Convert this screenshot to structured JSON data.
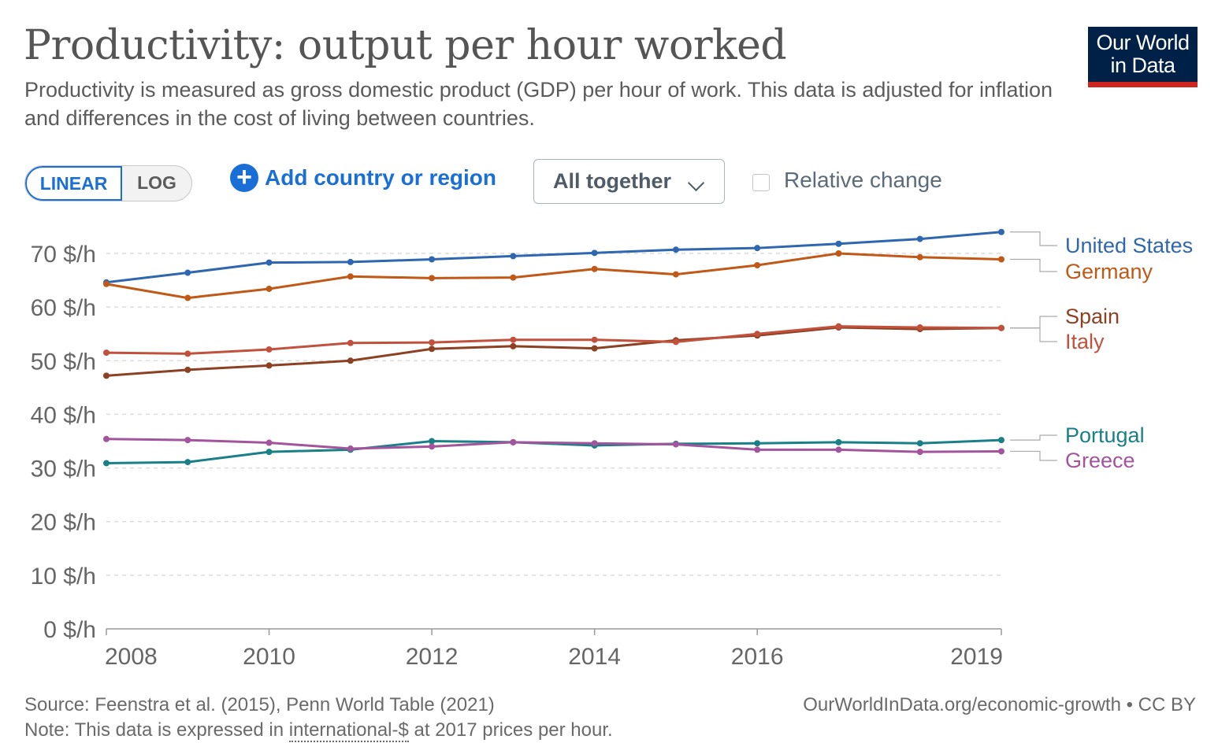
{
  "header": {
    "title": "Productivity: output per hour worked",
    "subtitle": "Productivity is measured as gross domestic product (GDP) per hour of work. This data is adjusted for inflation and differences in the cost of living between countries.",
    "logo_line1": "Our World",
    "logo_line2": "in Data"
  },
  "controls": {
    "linear_label": "LINEAR",
    "log_label": "LOG",
    "add_label": "Add country or region",
    "dropdown_value": "All together",
    "relative_label": "Relative change"
  },
  "footer": {
    "source": "Source: Feenstra et al. (2015), Penn World Table (2021)",
    "note_prefix": "Note: This data is expressed in ",
    "note_link": "international-$",
    "note_suffix": " at 2017 prices per hour.",
    "credit": "OurWorldInData.org/economic-growth • CC BY"
  },
  "colors": {
    "United States": "#2f66b0",
    "Germany": "#c05917",
    "Spain": "#8c4123",
    "Italy": "#c1513c",
    "Portugal": "#1a8087",
    "Greece": "#a2559c"
  },
  "chart_data": {
    "type": "line",
    "title": "Productivity: output per hour worked",
    "xlabel": "",
    "ylabel": "",
    "x": [
      2008,
      2009,
      2010,
      2011,
      2012,
      2013,
      2014,
      2015,
      2016,
      2017,
      2018,
      2019
    ],
    "xlim": [
      2008,
      2019
    ],
    "ylim": [
      0,
      70
    ],
    "x_ticks": [
      2008,
      2010,
      2012,
      2014,
      2016,
      2019
    ],
    "y_ticks": [
      0,
      10,
      20,
      30,
      40,
      50,
      60,
      70
    ],
    "y_tick_labels": [
      "0 $/h",
      "10 $/h",
      "20 $/h",
      "30 $/h",
      "40 $/h",
      "50 $/h",
      "60 $/h",
      "70 $/h"
    ],
    "grid": true,
    "legend": "right, labels at line ends",
    "series": [
      {
        "name": "United States",
        "values": [
          64.6,
          66.4,
          68.3,
          68.4,
          68.9,
          69.5,
          70.1,
          70.7,
          71.0,
          71.8,
          72.7,
          74.0
        ]
      },
      {
        "name": "Germany",
        "values": [
          64.3,
          61.7,
          63.4,
          65.7,
          65.4,
          65.5,
          67.1,
          66.1,
          67.8,
          70.0,
          69.3,
          68.9
        ]
      },
      {
        "name": "Spain",
        "values": [
          47.2,
          48.3,
          49.1,
          50.0,
          52.2,
          52.7,
          52.3,
          53.8,
          54.7,
          56.2,
          55.9,
          56.1
        ]
      },
      {
        "name": "Italy",
        "values": [
          51.5,
          51.3,
          52.1,
          53.3,
          53.4,
          53.9,
          53.9,
          53.5,
          55.0,
          56.4,
          56.2,
          56.1
        ]
      },
      {
        "name": "Portugal",
        "values": [
          30.9,
          31.1,
          33.0,
          33.4,
          35.0,
          34.8,
          34.2,
          34.5,
          34.6,
          34.8,
          34.6,
          35.2
        ]
      },
      {
        "name": "Greece",
        "values": [
          35.4,
          35.2,
          34.7,
          33.6,
          34.0,
          34.8,
          34.6,
          34.4,
          33.4,
          33.4,
          33.0,
          33.1
        ]
      }
    ]
  }
}
